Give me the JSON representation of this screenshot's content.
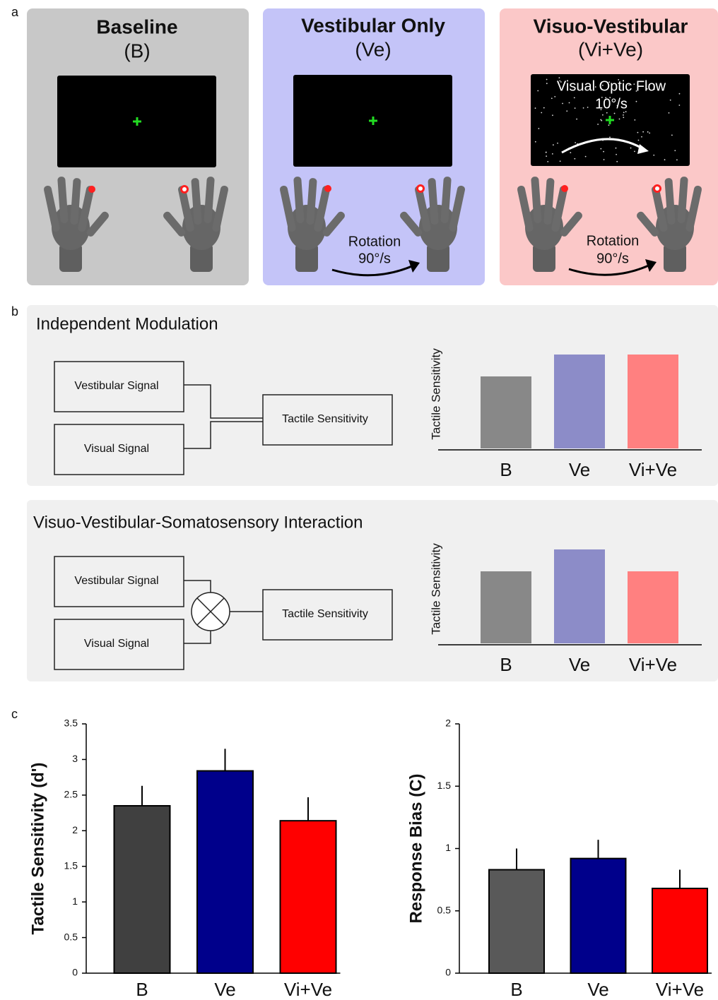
{
  "panel_labels": [
    "a",
    "b",
    "c"
  ],
  "panel_a": {
    "conditions": [
      {
        "title": "Baseline",
        "abbr": "(B)"
      },
      {
        "title": "Vestibular Only",
        "abbr": "(Ve)"
      },
      {
        "title": "Visuo-Vestibular",
        "abbr": "(Vi+Ve)"
      }
    ],
    "screen_text": [
      "Visual Optic Flow",
      "10°/s"
    ],
    "rotation_text": [
      "Rotation",
      "90°/s"
    ]
  },
  "panel_b": {
    "models": [
      {
        "title": "Independent Modulation",
        "inputs": [
          "Vestibular Signal",
          "Visual Signal"
        ],
        "output": "Tactile Sensitivity",
        "axis_label": "Tactile Sensitivity",
        "categories": [
          "B",
          "Ve",
          "Vi+Ve"
        ]
      },
      {
        "title": "Visuo-Vestibular-Somatosensory Interaction",
        "inputs": [
          "Vestibular Signal",
          "Visual Signal"
        ],
        "output": "Tactile Sensitivity",
        "axis_label": "Tactile Sensitivity",
        "categories": [
          "B",
          "Ve",
          "Vi+Ve"
        ]
      }
    ]
  },
  "chart_data": [
    {
      "type": "bar",
      "ylabel": "Tactile Sensitivity (d')",
      "categories": [
        "B",
        "Ve",
        "Vi+Ve"
      ],
      "values": [
        2.35,
        2.84,
        2.14
      ],
      "errors": [
        0.28,
        0.31,
        0.33
      ],
      "colors": [
        "#404040",
        "#00008b",
        "#ff0000"
      ],
      "ylim": [
        0,
        3.5
      ],
      "yticks": [
        0,
        0.5,
        1,
        1.5,
        2,
        2.5,
        3,
        3.5
      ]
    },
    {
      "type": "bar",
      "ylabel": "Response Bias (C)",
      "categories": [
        "B",
        "Ve",
        "Vi+Ve"
      ],
      "values": [
        0.83,
        0.92,
        0.68
      ],
      "errors": [
        0.17,
        0.15,
        0.15
      ],
      "colors": [
        "#595959",
        "#00008b",
        "#ff0000"
      ],
      "ylim": [
        0,
        2
      ],
      "yticks": [
        0,
        0.5,
        1,
        1.5,
        2
      ]
    }
  ]
}
